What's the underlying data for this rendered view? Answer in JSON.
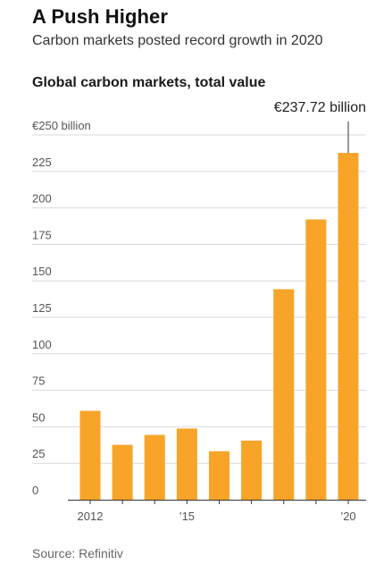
{
  "header": {
    "headline": "A Push Higher",
    "dek": "Carbon markets posted record growth in 2020"
  },
  "chart_data": {
    "type": "bar",
    "title": "Global carbon markets, total value",
    "xlabel": "",
    "ylabel": "",
    "categories": [
      "2012",
      "2013",
      "2014",
      "2015",
      "2016",
      "2017",
      "2018",
      "2019",
      "2020"
    ],
    "values": [
      60.9,
      37.6,
      44.4,
      48.8,
      33.2,
      40.5,
      144.3,
      192.1,
      237.72
    ],
    "x_tick_labels": [
      {
        "category": "2012",
        "label": "2012"
      },
      {
        "category": "2015",
        "label": "’15"
      },
      {
        "category": "2020",
        "label": "’20"
      }
    ],
    "y_ticks": [
      0,
      25,
      50,
      75,
      100,
      125,
      150,
      175,
      200,
      225,
      250
    ],
    "y_tick_labels": [
      "0",
      "25",
      "50",
      "75",
      "100",
      "125",
      "150",
      "175",
      "200",
      "225",
      "€250 billion"
    ],
    "ylim": [
      0,
      250
    ],
    "grid": true,
    "bar_color": "#f7a429",
    "annotation": {
      "category": "2020",
      "text": "€237.72 billion"
    }
  },
  "footer": {
    "source": "Source: Refinitiv"
  }
}
